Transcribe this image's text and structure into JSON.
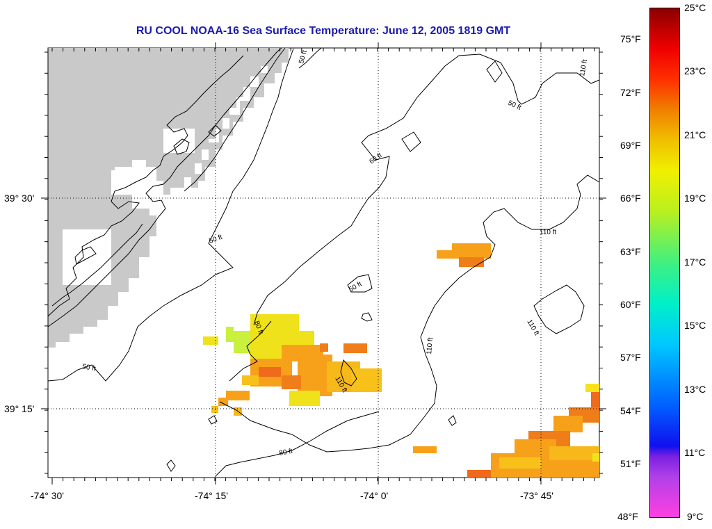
{
  "title": "RU COOL  NOAA-16  Sea Surface Temperature:  June 12, 2005 1819 GMT",
  "axes": {
    "lon_labels": [
      "-74° 30'",
      "-74° 15'",
      "-74° 0'",
      "-73° 45'"
    ],
    "lat_labels": [
      "39° 30'",
      "39° 15'"
    ]
  },
  "contour_labels": [
    "50 ft",
    "50 ft",
    "50 ft",
    "50 ft",
    "60 ft",
    "80 ft",
    "110 ft",
    "110 ft",
    "110 ft",
    "110 ft",
    "50 ft",
    "80 ft",
    "110 ft",
    "110 ft"
  ],
  "colorbar": {
    "fahrenheit": [
      "75°F",
      "72°F",
      "69°F",
      "66°F",
      "63°F",
      "60°F",
      "57°F",
      "54°F",
      "51°F",
      "48°F"
    ],
    "celsius": [
      "25°C",
      "23°C",
      "21°C",
      "19°C",
      "17°C",
      "15°C",
      "13°C",
      "11°C",
      "9°C"
    ]
  },
  "colors": {
    "land": "#c9c9c9",
    "title": "#1a1ab0",
    "sst_orange": "#f7a11a",
    "sst_dark_orange": "#ef6a1a",
    "sst_yellow": "#f0e21a",
    "sst_lime": "#c8f03c"
  }
}
